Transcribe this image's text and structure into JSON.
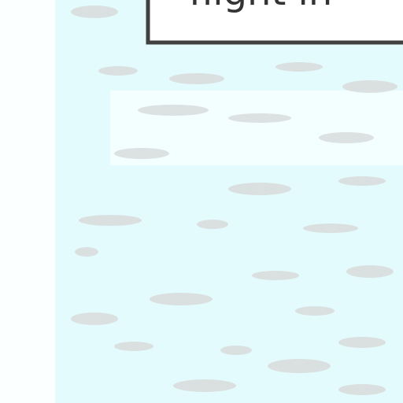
{
  "banner": {
    "text": "flight in"
  }
}
